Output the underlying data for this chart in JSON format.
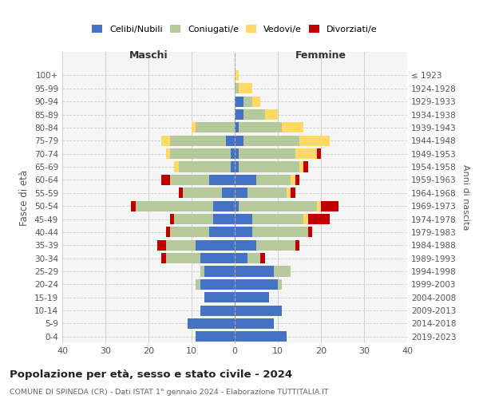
{
  "age_groups": [
    "0-4",
    "5-9",
    "10-14",
    "15-19",
    "20-24",
    "25-29",
    "30-34",
    "35-39",
    "40-44",
    "45-49",
    "50-54",
    "55-59",
    "60-64",
    "65-69",
    "70-74",
    "75-79",
    "80-84",
    "85-89",
    "90-94",
    "95-99",
    "100+"
  ],
  "birth_years": [
    "2019-2023",
    "2014-2018",
    "2009-2013",
    "2004-2008",
    "1999-2003",
    "1994-1998",
    "1989-1993",
    "1984-1988",
    "1979-1983",
    "1974-1978",
    "1969-1973",
    "1964-1968",
    "1959-1963",
    "1954-1958",
    "1949-1953",
    "1944-1948",
    "1939-1943",
    "1934-1938",
    "1929-1933",
    "1924-1928",
    "≤ 1923"
  ],
  "colors": {
    "celibi": "#4472c4",
    "coniugati": "#b5c99a",
    "vedovi": "#ffd966",
    "divorziati": "#c00000"
  },
  "maschi": {
    "celibi": [
      9,
      11,
      8,
      7,
      8,
      7,
      8,
      9,
      6,
      5,
      5,
      3,
      6,
      1,
      1,
      2,
      0,
      0,
      0,
      0,
      0
    ],
    "coniugati": [
      0,
      0,
      0,
      0,
      1,
      1,
      8,
      7,
      9,
      9,
      18,
      9,
      9,
      12,
      14,
      13,
      9,
      0,
      0,
      0,
      0
    ],
    "vedovi": [
      0,
      0,
      0,
      0,
      0,
      0,
      0,
      0,
      0,
      0,
      0,
      0,
      0,
      1,
      1,
      2,
      1,
      0,
      0,
      0,
      0
    ],
    "divorziati": [
      0,
      0,
      0,
      0,
      0,
      0,
      1,
      2,
      1,
      1,
      1,
      1,
      2,
      0,
      0,
      0,
      0,
      0,
      0,
      0,
      0
    ]
  },
  "femmine": {
    "celibi": [
      12,
      9,
      11,
      8,
      10,
      9,
      3,
      5,
      4,
      4,
      1,
      3,
      5,
      1,
      1,
      2,
      1,
      2,
      2,
      0,
      0
    ],
    "coniugati": [
      0,
      0,
      0,
      0,
      1,
      4,
      3,
      9,
      13,
      12,
      18,
      9,
      8,
      14,
      13,
      13,
      10,
      5,
      2,
      1,
      0
    ],
    "vedovi": [
      0,
      0,
      0,
      0,
      0,
      0,
      0,
      0,
      0,
      1,
      1,
      1,
      1,
      1,
      5,
      7,
      5,
      3,
      2,
      3,
      1
    ],
    "divorziati": [
      0,
      0,
      0,
      0,
      0,
      0,
      1,
      1,
      1,
      5,
      4,
      1,
      1,
      1,
      1,
      0,
      0,
      0,
      0,
      0,
      0
    ]
  },
  "title": "Popolazione per età, sesso e stato civile - 2024",
  "subtitle": "COMUNE DI SPINEDA (CR) - Dati ISTAT 1° gennaio 2024 - Elaborazione TUTTITALIA.IT",
  "ylabel_left": "Fasce di età",
  "ylabel_right": "Anni di nascita",
  "xlabel_maschi": "Maschi",
  "xlabel_femmine": "Femmine",
  "xlim": 40
}
